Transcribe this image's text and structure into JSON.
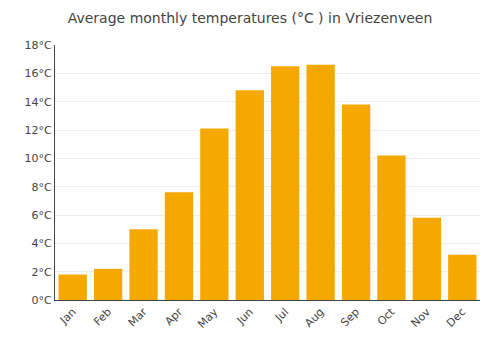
{
  "chart_data": {
    "type": "bar",
    "title": "Average monthly temperatures (°C ) in Vriezenveen",
    "categories": [
      "Jan",
      "Feb",
      "Mar",
      "Apr",
      "May",
      "Jun",
      "Jul",
      "Aug",
      "Sep",
      "Oct",
      "Nov",
      "Dec"
    ],
    "values": [
      1.8,
      2.2,
      5.0,
      7.6,
      12.1,
      14.8,
      16.5,
      16.6,
      13.8,
      10.2,
      5.8,
      3.2
    ],
    "color": "#F5A800",
    "ylim": [
      0,
      18
    ],
    "yticks": [
      {
        "value": 0,
        "label": "0°C"
      },
      {
        "value": 2,
        "label": "2°C"
      },
      {
        "value": 4,
        "label": "4°C"
      },
      {
        "value": 6,
        "label": "6°C"
      },
      {
        "value": 8,
        "label": "8°C"
      },
      {
        "value": 10,
        "label": "10°C"
      },
      {
        "value": 12,
        "label": "12°C"
      },
      {
        "value": 14,
        "label": "14°C"
      },
      {
        "value": 16,
        "label": "16°C"
      },
      {
        "value": 18,
        "label": "18°C"
      }
    ],
    "grid": true
  }
}
